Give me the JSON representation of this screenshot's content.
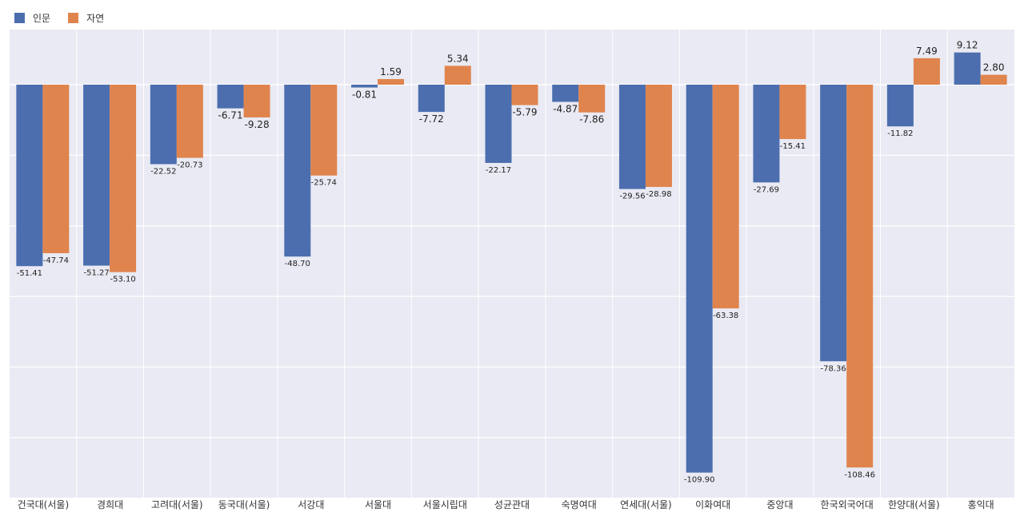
{
  "chart_data": {
    "type": "bar",
    "categories": [
      "건국대(서울)",
      "경희대",
      "고려대(서울)",
      "동국대(서울)",
      "서강대",
      "서울대",
      "서울시립대",
      "성균관대",
      "숙명여대",
      "연세대(서울)",
      "이화여대",
      "중앙대",
      "한국외국어대",
      "한양대(서울)",
      "홍익대"
    ],
    "series": [
      {
        "name": "인문",
        "color": "#4C6EAF",
        "values": [
          -51.41,
          -51.27,
          -22.52,
          -6.71,
          -48.7,
          -0.81,
          -7.72,
          -22.17,
          -4.87,
          -29.56,
          -109.9,
          -27.69,
          -78.36,
          -11.82,
          9.12
        ]
      },
      {
        "name": "자연",
        "color": "#E0844E",
        "values": [
          -47.74,
          -53.1,
          -20.73,
          -9.28,
          -25.74,
          1.59,
          5.34,
          -5.79,
          -7.86,
          -28.98,
          -63.38,
          -15.41,
          -108.46,
          7.49,
          2.8
        ]
      }
    ],
    "data_labels": [
      [
        "-51.41",
        "-51.27",
        "-22.52",
        "-6.71",
        "-48.70",
        "-0.81",
        "-7.72",
        "-22.17",
        "-4.87",
        "-29.56",
        "-109.90",
        "-27.69",
        "-78.36",
        "-11.82",
        "9.12"
      ],
      [
        "-47.74",
        "-53.10",
        "-20.73",
        "-9.28",
        "-25.74",
        "1.59",
        "5.34",
        "-5.79",
        "-7.86",
        "-28.98",
        "-63.38",
        "-15.41",
        "-108.46",
        "7.49",
        "2.80"
      ]
    ],
    "ylim": [
      -117,
      15
    ],
    "grid": true,
    "legend_position": "top-left",
    "background": "#E9EAF3"
  }
}
